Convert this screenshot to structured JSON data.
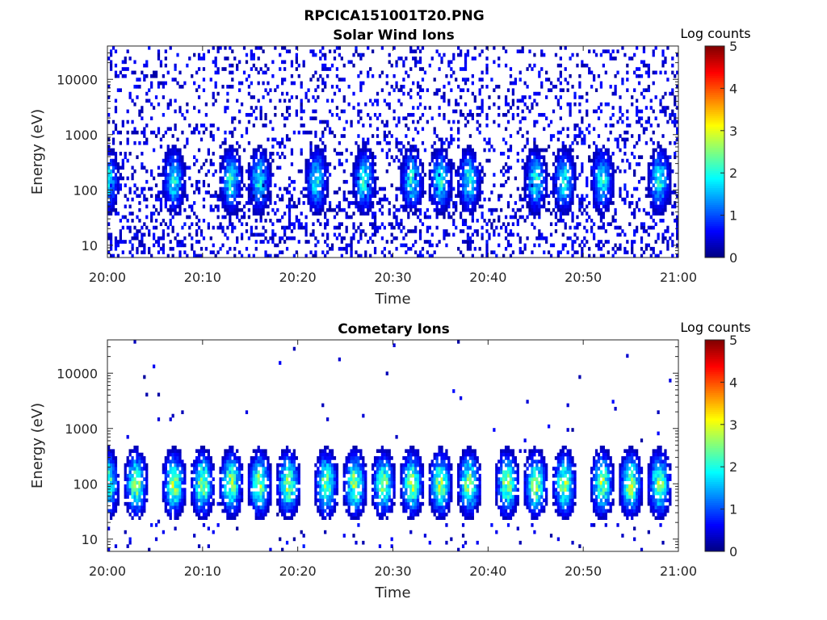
{
  "figure_title": "RPCICA151001T20.PNG",
  "chart_data": [
    {
      "type": "heatmap",
      "title": "Solar Wind Ions",
      "xlabel": "Time",
      "ylabel": "Energy (eV)",
      "x_ticks": [
        "20:00",
        "20:10",
        "20:20",
        "20:30",
        "20:40",
        "20:50",
        "21:00"
      ],
      "xlim": [
        "20:00",
        "21:00"
      ],
      "y_scale": "log",
      "y_ticks": [
        "10",
        "100",
        "1000",
        "10000"
      ],
      "ylim": [
        6,
        40000
      ],
      "colorbar": {
        "label": "Log counts",
        "ticks": [
          "0",
          "1",
          "2",
          "3",
          "4",
          "5"
        ],
        "range": [
          0,
          5
        ],
        "colormap": "jet"
      },
      "pattern": {
        "description_kind": "sparse",
        "background_level": 0.3,
        "burst_times": [
          "20:00",
          "20:07",
          "20:13",
          "20:16",
          "20:22",
          "20:27",
          "20:32",
          "20:35",
          "20:38",
          "20:45",
          "20:48",
          "20:52",
          "20:58"
        ],
        "burst_peak_energy_eV": 150,
        "burst_peak_level": 2.2
      }
    },
    {
      "type": "heatmap",
      "title": "Cometary Ions",
      "xlabel": "Time",
      "ylabel": "Energy (eV)",
      "x_ticks": [
        "20:00",
        "20:10",
        "20:20",
        "20:30",
        "20:40",
        "20:50",
        "21:00"
      ],
      "xlim": [
        "20:00",
        "21:00"
      ],
      "y_scale": "log",
      "y_ticks": [
        "10",
        "100",
        "1000",
        "10000"
      ],
      "ylim": [
        6,
        40000
      ],
      "colorbar": {
        "label": "Log counts",
        "ticks": [
          "0",
          "1",
          "2",
          "3",
          "4",
          "5"
        ],
        "range": [
          0,
          5
        ],
        "colormap": "jet"
      },
      "pattern": {
        "description_kind": "bursts",
        "background_level": 0.05,
        "burst_times": [
          "20:00",
          "20:03",
          "20:07",
          "20:10",
          "20:13",
          "20:16",
          "20:19",
          "20:23",
          "20:26",
          "20:29",
          "20:32",
          "20:35",
          "20:38",
          "20:42",
          "20:45",
          "20:48",
          "20:52",
          "20:55",
          "20:58"
        ],
        "burst_peak_energy_eV": 100,
        "burst_peak_level": 3.0
      }
    }
  ]
}
